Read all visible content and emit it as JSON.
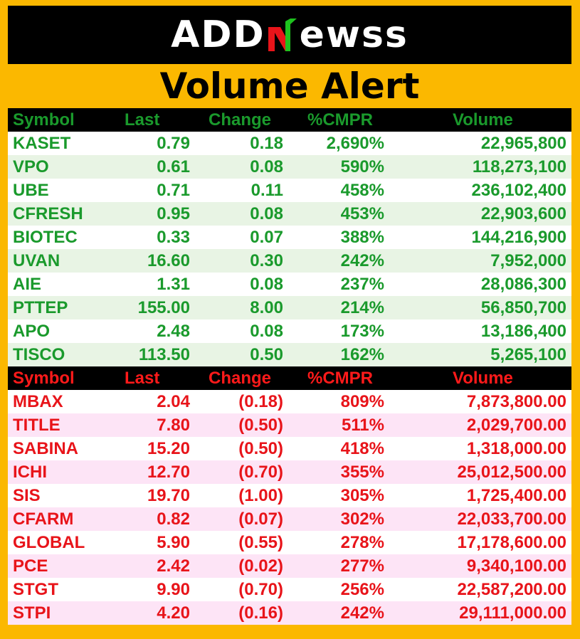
{
  "logo": {
    "prefix": "ADD",
    "suffix": "ewss",
    "accent_green": "#1ec21e",
    "accent_red": "#e8141a"
  },
  "title": "Volume Alert",
  "gainers": {
    "headers": {
      "symbol": "Symbol",
      "last": "Last",
      "change": "Change",
      "cmpr": "%CMPR",
      "volume": "Volume"
    },
    "rows": [
      {
        "symbol": "KASET",
        "last": "0.79",
        "change": "0.18",
        "cmpr": "2,690%",
        "volume": "22,965,800"
      },
      {
        "symbol": "VPO",
        "last": "0.61",
        "change": "0.08",
        "cmpr": "590%",
        "volume": "118,273,100"
      },
      {
        "symbol": "UBE",
        "last": "0.71",
        "change": "0.11",
        "cmpr": "458%",
        "volume": "236,102,400"
      },
      {
        "symbol": "CFRESH",
        "last": "0.95",
        "change": "0.08",
        "cmpr": "453%",
        "volume": "22,903,600"
      },
      {
        "symbol": "BIOTEC",
        "last": "0.33",
        "change": "0.07",
        "cmpr": "388%",
        "volume": "144,216,900"
      },
      {
        "symbol": "UVAN",
        "last": "16.60",
        "change": "0.30",
        "cmpr": "242%",
        "volume": "7,952,000"
      },
      {
        "symbol": "AIE",
        "last": "1.31",
        "change": "0.08",
        "cmpr": "237%",
        "volume": "28,086,300"
      },
      {
        "symbol": "PTTEP",
        "last": "155.00",
        "change": "8.00",
        "cmpr": "214%",
        "volume": "56,850,700"
      },
      {
        "symbol": "APO",
        "last": "2.48",
        "change": "0.08",
        "cmpr": "173%",
        "volume": "13,186,400"
      },
      {
        "symbol": "TISCO",
        "last": "113.50",
        "change": "0.50",
        "cmpr": "162%",
        "volume": "5,265,100"
      }
    ]
  },
  "losers": {
    "headers": {
      "symbol": "Symbol",
      "last": "Last",
      "change": "Change",
      "cmpr": "%CMPR",
      "volume": "Volume"
    },
    "rows": [
      {
        "symbol": "MBAX",
        "last": "2.04",
        "change": "(0.18)",
        "cmpr": "809%",
        "volume": "7,873,800.00"
      },
      {
        "symbol": "TITLE",
        "last": "7.80",
        "change": "(0.50)",
        "cmpr": "511%",
        "volume": "2,029,700.00"
      },
      {
        "symbol": "SABINA",
        "last": "15.20",
        "change": "(0.50)",
        "cmpr": "418%",
        "volume": "1,318,000.00"
      },
      {
        "symbol": "ICHI",
        "last": "12.70",
        "change": "(0.70)",
        "cmpr": "355%",
        "volume": "25,012,500.00"
      },
      {
        "symbol": "SIS",
        "last": "19.70",
        "change": "(1.00)",
        "cmpr": "305%",
        "volume": "1,725,400.00"
      },
      {
        "symbol": "CFARM",
        "last": "0.82",
        "change": "(0.07)",
        "cmpr": "302%",
        "volume": "22,033,700.00"
      },
      {
        "symbol": "GLOBAL",
        "last": "5.90",
        "change": "(0.55)",
        "cmpr": "278%",
        "volume": "17,178,600.00"
      },
      {
        "symbol": "PCE",
        "last": "2.42",
        "change": "(0.02)",
        "cmpr": "277%",
        "volume": "9,340,100.00"
      },
      {
        "symbol": "STGT",
        "last": "9.90",
        "change": "(0.70)",
        "cmpr": "256%",
        "volume": "22,587,200.00"
      },
      {
        "symbol": "STPI",
        "last": "4.20",
        "change": "(0.16)",
        "cmpr": "242%",
        "volume": "29,111,000.00"
      }
    ]
  }
}
